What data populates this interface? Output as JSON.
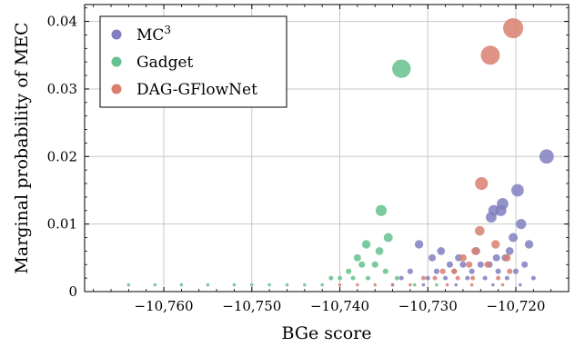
{
  "chart_data": {
    "type": "scatter",
    "title": "",
    "xlabel": "BGe score",
    "ylabel": "Marginal probability of MEC",
    "xlim": [
      -10769,
      -10714
    ],
    "ylim": [
      0,
      0.0425
    ],
    "xticks": [
      -10760,
      -10750,
      -10740,
      -10730,
      -10720
    ],
    "xtick_labels": [
      "−10,760",
      "−10,750",
      "−10,740",
      "−10,730",
      "−10,720"
    ],
    "yticks": [
      0,
      0.01,
      0.02,
      0.03,
      0.04
    ],
    "ytick_labels": [
      "0",
      "0.01",
      "0.02",
      "0.03",
      "0.04"
    ],
    "grid": true,
    "legend_position": "top-left",
    "series": [
      {
        "name": "MC",
        "name_superscript": "3",
        "color": "#8080c0",
        "points": [
          [
            -10716.5,
            0.02
          ],
          [
            -10721.5,
            0.013
          ],
          [
            -10721.7,
            0.012
          ],
          [
            -10722.5,
            0.012
          ],
          [
            -10722.8,
            0.011
          ],
          [
            -10719.4,
            0.01
          ],
          [
            -10719.8,
            0.015
          ],
          [
            -10720.3,
            0.008
          ],
          [
            -10718.5,
            0.007
          ],
          [
            -10720.7,
            0.006
          ],
          [
            -10721.2,
            0.005
          ],
          [
            -10722.2,
            0.005
          ],
          [
            -10723.0,
            0.004
          ],
          [
            -10724.0,
            0.004
          ],
          [
            -10725.0,
            0.003
          ],
          [
            -10726.0,
            0.004
          ],
          [
            -10727.0,
            0.003
          ],
          [
            -10728.0,
            0.002
          ],
          [
            -10729.0,
            0.003
          ],
          [
            -10730.0,
            0.002
          ],
          [
            -10731.0,
            0.007
          ],
          [
            -10728.5,
            0.006
          ],
          [
            -10726.5,
            0.005
          ],
          [
            -10724.5,
            0.006
          ],
          [
            -10723.5,
            0.002
          ],
          [
            -10722.0,
            0.003
          ],
          [
            -10721.0,
            0.002
          ],
          [
            -10720.0,
            0.003
          ],
          [
            -10719.0,
            0.004
          ],
          [
            -10718.0,
            0.002
          ],
          [
            -10725.5,
            0.002
          ],
          [
            -10727.5,
            0.004
          ],
          [
            -10729.5,
            0.005
          ],
          [
            -10732.0,
            0.003
          ],
          [
            -10733.0,
            0.002
          ],
          [
            -10734.0,
            0.001
          ],
          [
            -10730.5,
            0.001
          ],
          [
            -10726.8,
            0.001
          ],
          [
            -10722.6,
            0.001
          ],
          [
            -10719.5,
            0.001
          ]
        ]
      },
      {
        "name": "Gadget",
        "name_superscript": "",
        "color": "#66c08f",
        "points": [
          [
            -10733.0,
            0.033
          ],
          [
            -10735.3,
            0.012
          ],
          [
            -10734.5,
            0.008
          ],
          [
            -10737.0,
            0.007
          ],
          [
            -10735.5,
            0.006
          ],
          [
            -10738.0,
            0.005
          ],
          [
            -10736.0,
            0.004
          ],
          [
            -10737.5,
            0.004
          ],
          [
            -10739.0,
            0.003
          ],
          [
            -10740.0,
            0.002
          ],
          [
            -10741.0,
            0.002
          ],
          [
            -10742.0,
            0.001
          ],
          [
            -10744.0,
            0.001
          ],
          [
            -10746.0,
            0.001
          ],
          [
            -10748.0,
            0.001
          ],
          [
            -10750.0,
            0.001
          ],
          [
            -10752.0,
            0.001
          ],
          [
            -10755.0,
            0.001
          ],
          [
            -10758.0,
            0.001
          ],
          [
            -10761.0,
            0.001
          ],
          [
            -10764.0,
            0.001
          ],
          [
            -10733.5,
            0.002
          ],
          [
            -10734.8,
            0.003
          ],
          [
            -10736.8,
            0.002
          ],
          [
            -10738.5,
            0.002
          ],
          [
            -10731.5,
            0.001
          ],
          [
            -10729.0,
            0.001
          ]
        ]
      },
      {
        "name": "DAG-GFlowNet",
        "name_superscript": "",
        "color": "#d98070",
        "points": [
          [
            -10720.3,
            0.039
          ],
          [
            -10722.9,
            0.035
          ],
          [
            -10723.9,
            0.016
          ],
          [
            -10724.1,
            0.009
          ],
          [
            -10722.3,
            0.007
          ],
          [
            -10724.6,
            0.006
          ],
          [
            -10726.0,
            0.005
          ],
          [
            -10721.0,
            0.005
          ],
          [
            -10723.2,
            0.004
          ],
          [
            -10725.3,
            0.004
          ],
          [
            -10727.0,
            0.003
          ],
          [
            -10728.3,
            0.003
          ],
          [
            -10720.7,
            0.003
          ],
          [
            -10724.9,
            0.002
          ],
          [
            -10726.6,
            0.002
          ],
          [
            -10729.2,
            0.002
          ],
          [
            -10730.5,
            0.002
          ],
          [
            -10722.0,
            0.002
          ],
          [
            -10732.0,
            0.001
          ],
          [
            -10734.0,
            0.001
          ],
          [
            -10736.0,
            0.001
          ],
          [
            -10738.0,
            0.001
          ],
          [
            -10740.0,
            0.001
          ],
          [
            -10727.8,
            0.001
          ],
          [
            -10725.0,
            0.001
          ],
          [
            -10721.5,
            0.001
          ]
        ]
      }
    ]
  }
}
